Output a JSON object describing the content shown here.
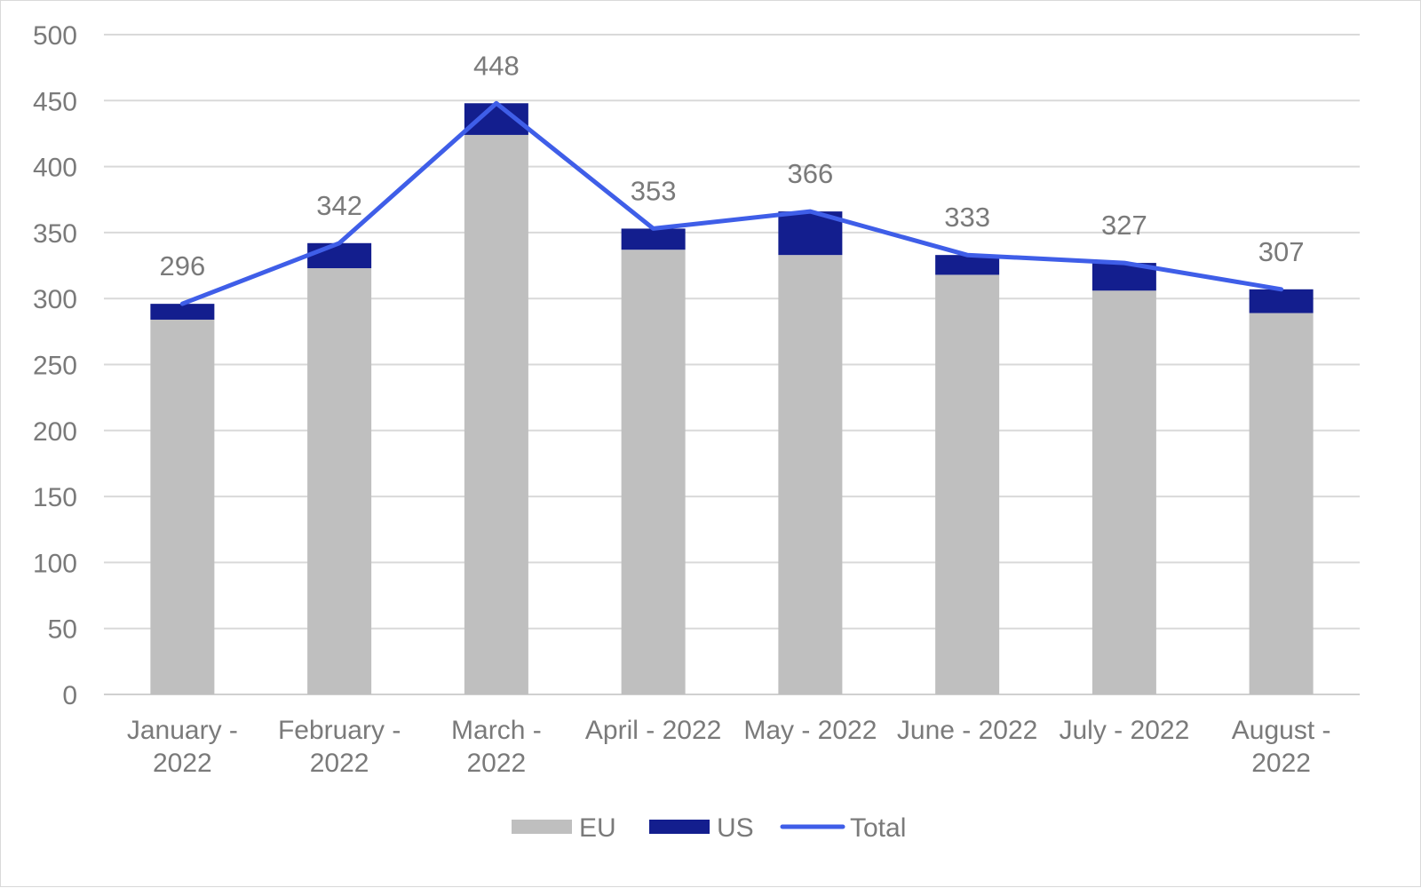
{
  "chart_data": {
    "type": "bar",
    "stacked": true,
    "title": "",
    "xlabel": "",
    "ylabel": "",
    "ylim": [
      0,
      500
    ],
    "ytick_step": 50,
    "grid": true,
    "legend_position": "bottom",
    "categories": [
      [
        "January -",
        "2022"
      ],
      [
        "February -",
        "2022"
      ],
      [
        "March -",
        "2022"
      ],
      [
        "April - 2022"
      ],
      [
        "May - 2022"
      ],
      [
        "June - 2022"
      ],
      [
        "July - 2022"
      ],
      [
        "August -",
        "2022"
      ]
    ],
    "series": [
      {
        "name": "EU",
        "kind": "bar",
        "color": "#bfbfbf",
        "values": [
          284,
          323,
          424,
          337,
          333,
          318,
          306,
          289
        ]
      },
      {
        "name": "US",
        "kind": "bar",
        "color": "#131e8e",
        "values": [
          12,
          19,
          24,
          16,
          33,
          15,
          21,
          18
        ]
      },
      {
        "name": "Total",
        "kind": "line",
        "color": "#3f5ee8",
        "values": [
          296,
          342,
          448,
          353,
          366,
          333,
          327,
          307
        ]
      }
    ],
    "data_labels": [
      "296",
      "342",
      "448",
      "353",
      "366",
      "333",
      "327",
      "307"
    ]
  }
}
